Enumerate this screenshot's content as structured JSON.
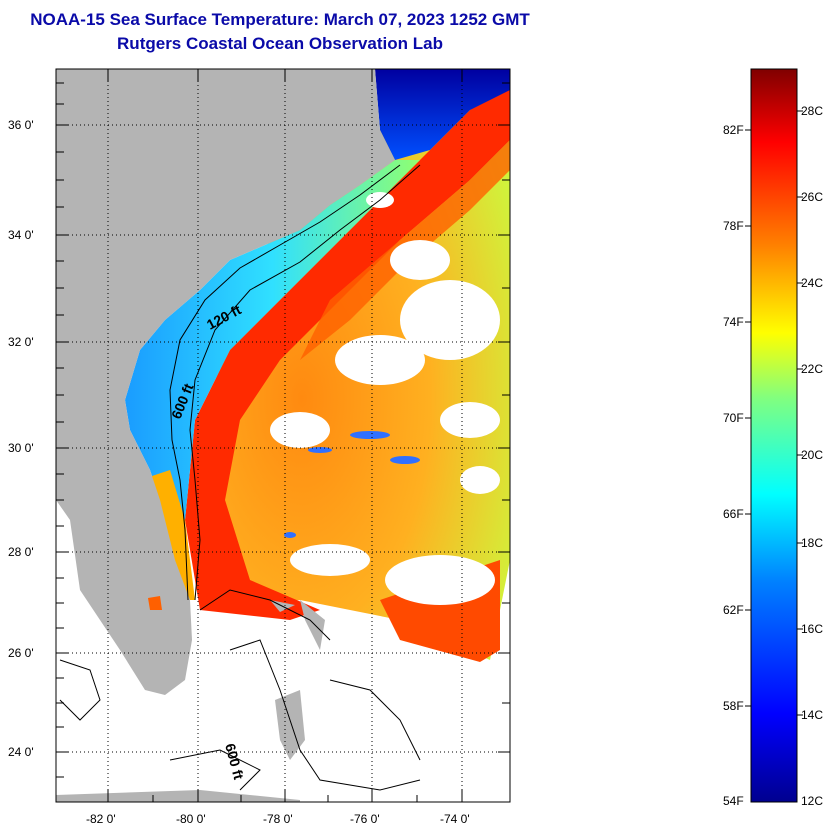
{
  "title": "NOAA-15 Sea Surface Temperature:  March 07, 2023 1252 GMT",
  "subtitle": "Rutgers Coastal Ocean Observation Lab",
  "lat_labels": [
    "36 0'",
    "34 0'",
    "32 0'",
    "30 0'",
    "28 0'",
    "26 0'",
    "24 0'"
  ],
  "lon_labels": [
    "-82 0'",
    "-80 0'",
    "-78 0'",
    "-76 0'",
    "-74 0'"
  ],
  "contour_labels": [
    "120 ft",
    "600 ft",
    "600 ft"
  ],
  "colorbar": {
    "fahrenheit": [
      "82F",
      "78F",
      "74F",
      "70F",
      "66F",
      "62F",
      "58F",
      "54F"
    ],
    "celsius": [
      "28C",
      "26C",
      "24C",
      "22C",
      "20C",
      "18C",
      "16C",
      "14C",
      "12C"
    ],
    "range_c": [
      12,
      29
    ],
    "stops": [
      "#00008f",
      "#0000ff",
      "#0080ff",
      "#00ffff",
      "#80ff80",
      "#ffff00",
      "#ff8000",
      "#ff0000",
      "#800000"
    ]
  },
  "colors": {
    "land": "#b4b4b4",
    "no_data": "#ffffff",
    "title": "#0a0aa8"
  }
}
